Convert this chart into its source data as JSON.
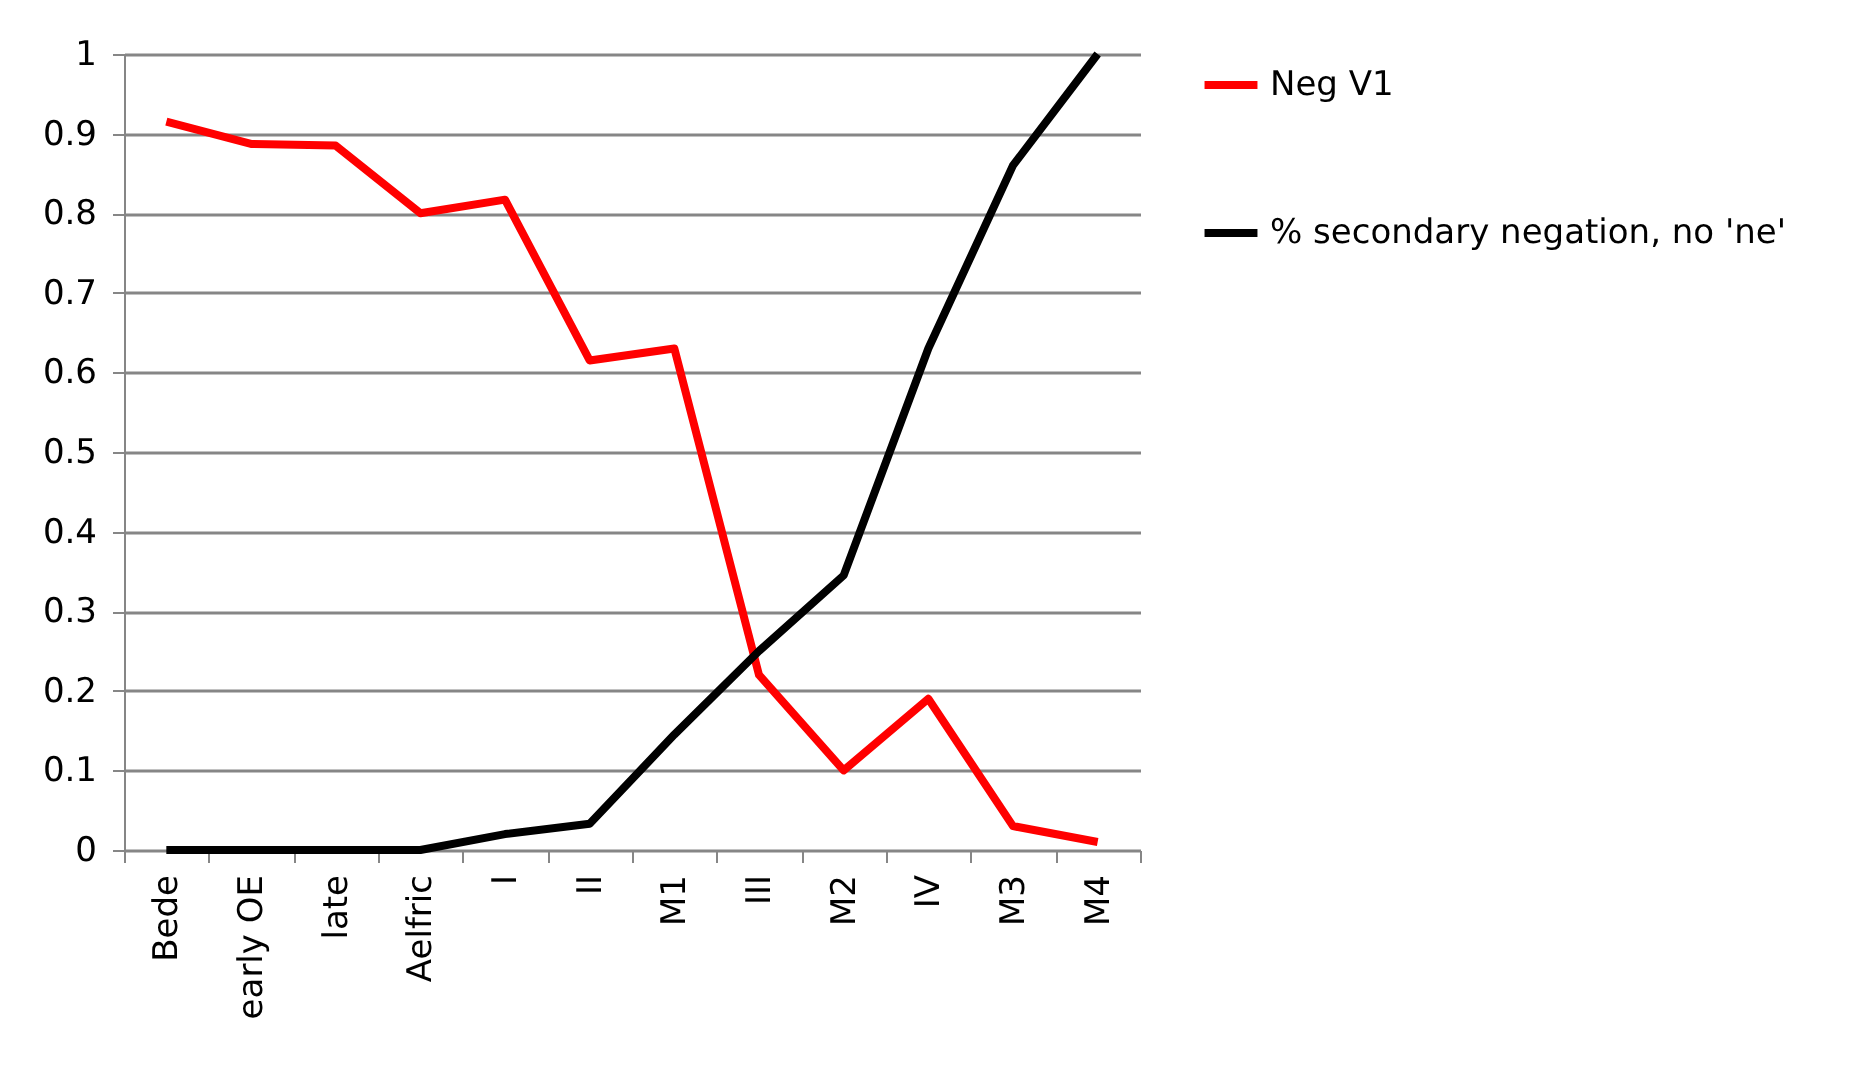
{
  "chart_data": {
    "type": "line",
    "categories": [
      "Bede",
      "early OE",
      "late",
      "Aelfric",
      "I",
      "II",
      "M1",
      "III",
      "M2",
      "IV",
      "M3",
      "M4"
    ],
    "series": [
      {
        "name": "Neg V1",
        "color": "#ff0000",
        "values": [
          0.915,
          0.887,
          0.885,
          0.8,
          0.817,
          0.615,
          0.63,
          0.22,
          0.1,
          0.19,
          0.03,
          0.01
        ]
      },
      {
        "name": "% secondary negation, no 'ne'",
        "color": "#000000",
        "values": [
          0,
          0,
          0,
          0,
          0.02,
          0.033,
          0.145,
          0.25,
          0.345,
          0.63,
          0.86,
          1
        ]
      }
    ],
    "ylim": [
      0,
      1
    ],
    "yticks": [
      0,
      0.1,
      0.2,
      0.3,
      0.4,
      0.5,
      0.6,
      0.7,
      0.8,
      0.9,
      1
    ],
    "grid": "y",
    "legend": "right",
    "marker": "none",
    "line_style": "solid"
  }
}
